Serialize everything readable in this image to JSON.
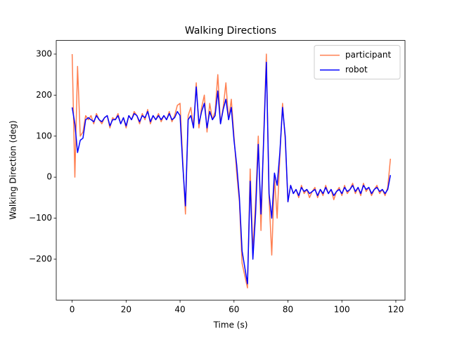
{
  "chart_data": {
    "type": "line",
    "title": "Walking Directions",
    "x_label": "Time (s)",
    "y_label": "Walking Direction (deg)",
    "x": [
      0,
      1,
      2,
      3,
      4,
      5,
      6,
      7,
      8,
      9,
      10,
      11,
      12,
      13,
      14,
      15,
      16,
      17,
      18,
      19,
      20,
      21,
      22,
      23,
      24,
      25,
      26,
      27,
      28,
      29,
      30,
      31,
      32,
      33,
      34,
      35,
      36,
      37,
      38,
      39,
      40,
      41,
      42,
      43,
      44,
      45,
      46,
      47,
      48,
      49,
      50,
      51,
      52,
      53,
      54,
      55,
      56,
      57,
      58,
      59,
      60,
      61,
      62,
      63,
      64,
      65,
      66,
      67,
      68,
      69,
      70,
      71,
      72,
      73,
      74,
      75,
      76,
      77,
      78,
      79,
      80,
      81,
      82,
      83,
      84,
      85,
      86,
      87,
      88,
      89,
      90,
      91,
      92,
      93,
      94,
      95,
      96,
      97,
      98,
      99,
      100,
      101,
      102,
      103,
      104,
      105,
      106,
      107,
      108,
      109,
      110,
      111,
      112,
      113,
      114,
      115,
      116,
      117,
      118
    ],
    "series": [
      {
        "name": "participant",
        "color": "#ff7f50",
        "values": [
          300,
          0,
          270,
          100,
          110,
          150,
          140,
          150,
          130,
          155,
          140,
          130,
          145,
          150,
          120,
          145,
          140,
          155,
          130,
          145,
          120,
          150,
          140,
          160,
          150,
          130,
          155,
          140,
          165,
          130,
          150,
          140,
          155,
          135,
          150,
          140,
          160,
          135,
          150,
          175,
          180,
          40,
          -90,
          150,
          170,
          120,
          230,
          120,
          170,
          200,
          110,
          180,
          140,
          160,
          250,
          130,
          170,
          230,
          140,
          190,
          100,
          10,
          -60,
          -210,
          -240,
          -270,
          20,
          -180,
          -60,
          100,
          -130,
          100,
          300,
          -50,
          -190,
          0,
          -100,
          50,
          180,
          90,
          -60,
          -20,
          -40,
          -30,
          -50,
          -20,
          -40,
          -30,
          -50,
          -35,
          -25,
          -50,
          -30,
          -45,
          -20,
          -40,
          -30,
          -55,
          -35,
          -25,
          -45,
          -20,
          -40,
          -30,
          -15,
          -40,
          -25,
          -45,
          -15,
          -35,
          -25,
          -45,
          -30,
          -20,
          -40,
          -30,
          -45,
          -25,
          45
        ]
      },
      {
        "name": "robot",
        "color": "#0000ff",
        "values": [
          170,
          130,
          60,
          90,
          95,
          140,
          145,
          140,
          135,
          150,
          140,
          135,
          145,
          150,
          125,
          140,
          140,
          150,
          130,
          145,
          125,
          150,
          140,
          155,
          150,
          135,
          150,
          145,
          160,
          135,
          150,
          140,
          150,
          140,
          150,
          140,
          155,
          140,
          145,
          160,
          150,
          30,
          -70,
          140,
          150,
          120,
          220,
          130,
          160,
          180,
          120,
          160,
          140,
          150,
          210,
          130,
          165,
          190,
          140,
          170,
          90,
          30,
          -50,
          -180,
          -220,
          -260,
          -10,
          -200,
          -90,
          80,
          -90,
          90,
          280,
          -40,
          -100,
          10,
          -20,
          60,
          170,
          100,
          -60,
          -20,
          -40,
          -30,
          -45,
          -25,
          -35,
          -30,
          -40,
          -35,
          -30,
          -45,
          -30,
          -40,
          -25,
          -40,
          -30,
          -45,
          -35,
          -30,
          -40,
          -25,
          -35,
          -30,
          -20,
          -35,
          -25,
          -40,
          -20,
          -30,
          -25,
          -40,
          -30,
          -25,
          -35,
          -30,
          -40,
          -30,
          5
        ]
      }
    ],
    "xlim": [
      -5.9,
      123.4
    ],
    "ylim": [
      -299.7,
      333.2
    ],
    "xticks": [
      0,
      20,
      40,
      60,
      80,
      100,
      120
    ],
    "yticks": [
      {
        "value": -200,
        "label": "−200"
      },
      {
        "value": -100,
        "label": "−100"
      },
      0,
      100,
      200,
      300
    ],
    "legend": "upper right"
  }
}
